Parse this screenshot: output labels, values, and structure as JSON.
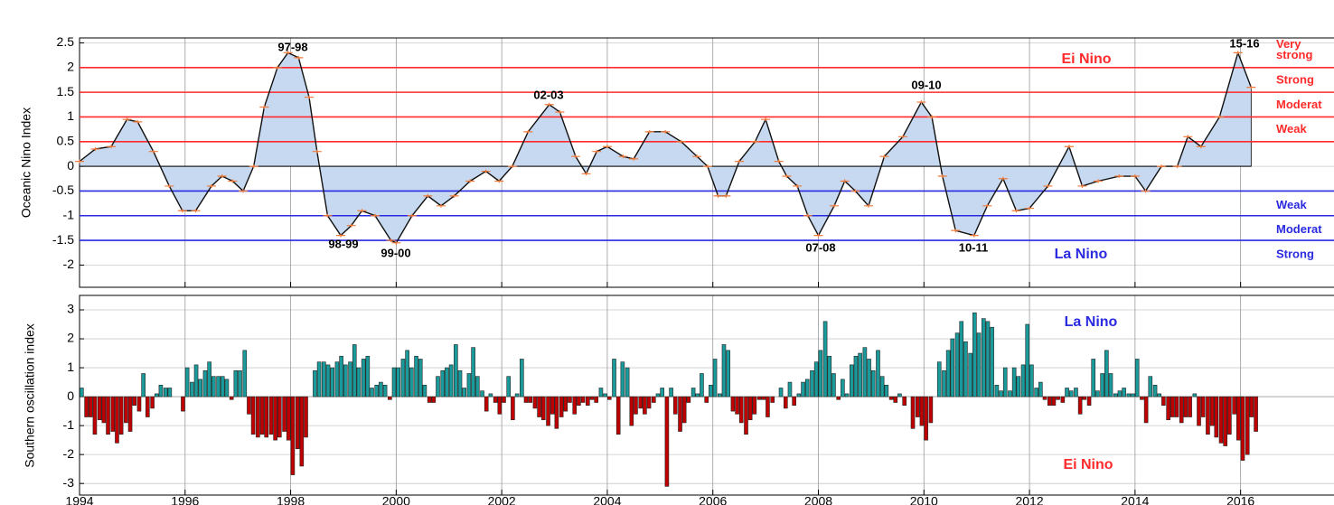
{
  "chart_data": [
    {
      "type": "area",
      "y_label": "Oceanic Nino Index",
      "x": [
        1994.0,
        1994.3,
        1994.6,
        1994.9,
        1995.1,
        1995.4,
        1995.7,
        1995.95,
        1996.2,
        1996.5,
        1996.7,
        1996.9,
        1997.1,
        1997.3,
        1997.5,
        1997.75,
        1997.95,
        1998.15,
        1998.35,
        1998.5,
        1998.7,
        1998.95,
        1999.15,
        1999.35,
        1999.6,
        1999.9,
        2000.0,
        2000.3,
        2000.6,
        2000.85,
        2001.1,
        2001.4,
        2001.7,
        2001.95,
        2002.2,
        2002.5,
        2002.9,
        2003.1,
        2003.4,
        2003.6,
        2003.8,
        2004.0,
        2004.3,
        2004.5,
        2004.8,
        2005.1,
        2005.4,
        2005.7,
        2005.9,
        2006.1,
        2006.25,
        2006.5,
        2006.8,
        2007.0,
        2007.25,
        2007.4,
        2007.6,
        2007.8,
        2008.0,
        2008.3,
        2008.5,
        2008.7,
        2008.95,
        2009.25,
        2009.6,
        2009.95,
        2010.15,
        2010.35,
        2010.6,
        2010.95,
        2011.2,
        2011.5,
        2011.75,
        2012.0,
        2012.35,
        2012.75,
        2013.0,
        2013.3,
        2013.7,
        2014.0,
        2014.2,
        2014.5,
        2014.8,
        2015.0,
        2015.25,
        2015.6,
        2015.95,
        2016.2
      ],
      "values": [
        0.1,
        0.35,
        0.4,
        0.95,
        0.9,
        0.3,
        -0.4,
        -0.9,
        -0.9,
        -0.4,
        -0.2,
        -0.3,
        -0.5,
        0,
        1.2,
        2,
        2.3,
        2.2,
        1.4,
        0.3,
        -1,
        -1.4,
        -1.2,
        -0.9,
        -1,
        -1.5,
        -1.55,
        -1,
        -0.6,
        -0.8,
        -0.6,
        -0.3,
        -0.1,
        -0.3,
        0,
        0.7,
        1.25,
        1.1,
        0.2,
        -0.15,
        0.3,
        0.4,
        0.2,
        0.15,
        0.7,
        0.7,
        0.5,
        0.2,
        0,
        -0.6,
        -0.6,
        0.1,
        0.5,
        0.95,
        0.1,
        -0.2,
        -0.4,
        -1,
        -1.4,
        -0.8,
        -0.3,
        -0.5,
        -0.8,
        0.2,
        0.6,
        1.3,
        1,
        -0.2,
        -1.3,
        -1.4,
        -0.8,
        -0.25,
        -0.9,
        -0.85,
        -0.4,
        0.4,
        -0.4,
        -0.3,
        -0.2,
        -0.2,
        -0.5,
        0,
        0,
        0.6,
        0.4,
        1,
        2.3,
        1.6
      ],
      "fill_color": "#c6d9f1",
      "line_color": "#111111",
      "marker_color": "#f07a3a",
      "xlim": [
        1994,
        2017.77
      ],
      "xticks": [
        1994,
        1996,
        1998,
        2000,
        2002,
        2004,
        2006,
        2008,
        2010,
        2012,
        2014,
        2016
      ],
      "ylim": [
        -2.45,
        2.6
      ],
      "yticks": [
        2.5,
        2,
        1.5,
        1,
        0.5,
        0,
        -0.5,
        -1,
        -1.5,
        -2
      ],
      "grid": true,
      "reference_lines": [
        {
          "value": 2,
          "color": "#ff2a2a",
          "label": [
            "Very",
            "strong"
          ]
        },
        {
          "value": 1.5,
          "color": "#ff2a2a",
          "label": [
            "Strong"
          ]
        },
        {
          "value": 1,
          "color": "#ff2a2a",
          "label": [
            "Moderat"
          ]
        },
        {
          "value": 0.5,
          "color": "#ff2a2a",
          "label": [
            "Weak"
          ]
        },
        {
          "value": -0.5,
          "color": "#2a2ae0",
          "label": [
            "Weak"
          ]
        },
        {
          "value": -1,
          "color": "#2a2ae0",
          "label": [
            "Moderat"
          ]
        },
        {
          "value": -1.5,
          "color": "#2a2ae0",
          "label": [
            "Strong"
          ]
        }
      ],
      "annotations": [
        "97-98",
        "98-99",
        "99-00",
        "02-03",
        "07-08",
        "09-10",
        "10-11",
        "15-16",
        "Ei Nino",
        "La Nino"
      ]
    },
    {
      "type": "bar",
      "y_label": "Southern oscillation index",
      "x": [
        1994.04,
        1994.13,
        1994.21,
        1994.29,
        1994.38,
        1994.46,
        1994.54,
        1994.63,
        1994.71,
        1994.79,
        1994.88,
        1994.96,
        1995.04,
        1995.13,
        1995.21,
        1995.29,
        1995.38,
        1995.46,
        1995.54,
        1995.63,
        1995.71,
        1995.79,
        1995.88,
        1995.96,
        1996.04,
        1996.13,
        1996.21,
        1996.29,
        1996.38,
        1996.46,
        1996.54,
        1996.63,
        1996.71,
        1996.79,
        1996.88,
        1996.96,
        1997.04,
        1997.13,
        1997.21,
        1997.29,
        1997.38,
        1997.46,
        1997.54,
        1997.63,
        1997.71,
        1997.79,
        1997.88,
        1997.96,
        1998.04,
        1998.13,
        1998.21,
        1998.29,
        1998.38,
        1998.46,
        1998.54,
        1998.63,
        1998.71,
        1998.79,
        1998.88,
        1998.96,
        1999.04,
        1999.13,
        1999.21,
        1999.29,
        1999.38,
        1999.46,
        1999.54,
        1999.63,
        1999.71,
        1999.79,
        1999.88,
        1999.96,
        2000.04,
        2000.13,
        2000.21,
        2000.29,
        2000.38,
        2000.46,
        2000.54,
        2000.63,
        2000.71,
        2000.79,
        2000.88,
        2000.96,
        2001.04,
        2001.13,
        2001.21,
        2001.29,
        2001.38,
        2001.46,
        2001.54,
        2001.63,
        2001.71,
        2001.79,
        2001.88,
        2001.96,
        2002.04,
        2002.13,
        2002.21,
        2002.29,
        2002.38,
        2002.46,
        2002.54,
        2002.63,
        2002.71,
        2002.79,
        2002.88,
        2002.96,
        2003.04,
        2003.13,
        2003.21,
        2003.29,
        2003.38,
        2003.46,
        2003.54,
        2003.63,
        2003.71,
        2003.79,
        2003.88,
        2003.96,
        2004.04,
        2004.13,
        2004.21,
        2004.29,
        2004.38,
        2004.46,
        2004.54,
        2004.63,
        2004.71,
        2004.79,
        2004.88,
        2004.96,
        2005.04,
        2005.13,
        2005.21,
        2005.29,
        2005.38,
        2005.46,
        2005.54,
        2005.63,
        2005.71,
        2005.79,
        2005.88,
        2005.96,
        2006.04,
        2006.13,
        2006.21,
        2006.29,
        2006.38,
        2006.46,
        2006.54,
        2006.63,
        2006.71,
        2006.79,
        2006.88,
        2006.96,
        2007.04,
        2007.13,
        2007.21,
        2007.29,
        2007.38,
        2007.46,
        2007.54,
        2007.63,
        2007.71,
        2007.79,
        2007.88,
        2007.96,
        2008.04,
        2008.13,
        2008.21,
        2008.29,
        2008.38,
        2008.46,
        2008.54,
        2008.63,
        2008.71,
        2008.79,
        2008.88,
        2008.96,
        2009.04,
        2009.13,
        2009.21,
        2009.29,
        2009.38,
        2009.46,
        2009.54,
        2009.63,
        2009.71,
        2009.79,
        2009.88,
        2009.96,
        2010.04,
        2010.13,
        2010.21,
        2010.29,
        2010.38,
        2010.46,
        2010.54,
        2010.63,
        2010.71,
        2010.79,
        2010.88,
        2010.96,
        2011.04,
        2011.13,
        2011.21,
        2011.29,
        2011.38,
        2011.46,
        2011.54,
        2011.63,
        2011.71,
        2011.79,
        2011.88,
        2011.96,
        2012.04,
        2012.13,
        2012.21,
        2012.29,
        2012.38,
        2012.46,
        2012.54,
        2012.63,
        2012.71,
        2012.79,
        2012.88,
        2012.96,
        2013.04,
        2013.13,
        2013.21,
        2013.29,
        2013.38,
        2013.46,
        2013.54,
        2013.63,
        2013.71,
        2013.79,
        2013.88,
        2013.96,
        2014.04,
        2014.13,
        2014.21,
        2014.29,
        2014.38,
        2014.46,
        2014.54,
        2014.63,
        2014.71,
        2014.79,
        2014.88,
        2014.96,
        2015.04,
        2015.13,
        2015.21,
        2015.29,
        2015.38,
        2015.46,
        2015.54,
        2015.63,
        2015.71,
        2015.79,
        2015.88,
        2015.96,
        2016.04,
        2016.13,
        2016.21,
        2016.29,
        2016.38,
        2016.46,
        2016.54,
        2016.63,
        2016.71,
        2016.79,
        2016.88,
        2016.96
      ],
      "values": [
        0.3,
        -0.7,
        -0.7,
        -1.3,
        -0.8,
        -0.9,
        -1.3,
        -1.2,
        -1.6,
        -1.3,
        -0.9,
        -1.2,
        -0.3,
        -0.5,
        0.8,
        -0.7,
        -0.4,
        0.1,
        0.4,
        0.3,
        0.3,
        0,
        0,
        -0.5,
        1,
        0.5,
        1.1,
        0.6,
        0.9,
        1.2,
        0.7,
        0.7,
        0.7,
        0.6,
        -0.1,
        0.9,
        0.9,
        1.6,
        -0.6,
        -1.3,
        -1.4,
        -1.3,
        -1.4,
        -1.3,
        -1.5,
        -1.4,
        -1.2,
        -1.5,
        -2.7,
        -1.8,
        -2.4,
        -1.4,
        0,
        0.9,
        1.2,
        1.2,
        1.1,
        1,
        1.2,
        1.4,
        1.1,
        1.2,
        1.8,
        1,
        1.3,
        1.4,
        0.3,
        0.4,
        0.5,
        0.4,
        -0.1,
        1,
        1,
        1.3,
        1.6,
        1,
        1.4,
        1.3,
        0.4,
        -0.2,
        -0.2,
        0.7,
        0.9,
        1,
        1.1,
        1.8,
        0.9,
        0.3,
        0.8,
        1.7,
        0.7,
        0.2,
        -0.5,
        0.1,
        -0.2,
        -0.6,
        -0.2,
        0.7,
        -0.8,
        0.1,
        1.3,
        -0.2,
        -0.2,
        -0.4,
        -0.7,
        -0.8,
        -1,
        -0.6,
        -1.1,
        -0.7,
        -0.5,
        -0.2,
        -0.6,
        -0.3,
        -0.2,
        -0.3,
        -0.1,
        -0.2,
        0.3,
        0.1,
        -0.1,
        1.3,
        -1.3,
        1.2,
        1,
        -1,
        -0.6,
        -0.4,
        -0.6,
        -0.4,
        -0.2,
        0.1,
        0.3,
        -3.1,
        0.3,
        -0.6,
        -1.2,
        -0.9,
        -0.2,
        0.3,
        0.1,
        0.8,
        -0.2,
        0.4,
        1.3,
        0.1,
        1.8,
        1.6,
        -0.5,
        -0.6,
        -0.9,
        -1.3,
        -0.8,
        -0.6,
        -0.1,
        -0.1,
        -0.7,
        -0.2,
        0,
        0.3,
        -0.4,
        0.5,
        -0.3,
        0.1,
        0.5,
        0.6,
        0.9,
        1.2,
        1.6,
        2.6,
        1.4,
        0.8,
        -0.1,
        0.6,
        0.1,
        1.1,
        1.4,
        1.5,
        1.7,
        1.3,
        0.9,
        1.6,
        0.7,
        0.4,
        -0.1,
        -0.2,
        0.1,
        -0.3,
        0,
        -1.1,
        -0.7,
        -1,
        -1.5,
        -0.9,
        0,
        1.2,
        0.9,
        1.6,
        2,
        2.2,
        2.6,
        1.9,
        1.5,
        2.9,
        2.2,
        2.7,
        2.6,
        2.4,
        0.4,
        0.2,
        1,
        0.2,
        1,
        0.7,
        1.1,
        2.5,
        1.1,
        0.3,
        0.5,
        -0.1,
        -0.3,
        -0.3,
        -0.1,
        -0.2,
        0.3,
        0.2,
        0.3,
        -0.6,
        -0.1,
        -0.3,
        1.3,
        0.2,
        0.8,
        1.6,
        0.8,
        0.1,
        0.2,
        0.3,
        0.1,
        0.1,
        1.3,
        -0.1,
        -0.9,
        0.7,
        0.4,
        0.1,
        -0.3,
        -0.8,
        -0.7,
        -0.7,
        -0.9,
        -0.7,
        -0.7,
        0.1,
        -1,
        -0.7,
        -1.3,
        -1,
        -1.4,
        -1.6,
        -1.7,
        -1.3,
        -0.6,
        -1.5,
        -2.2,
        -2,
        -0.7,
        -1.2,
        0,
        0,
        0,
        0,
        0,
        0,
        0,
        0
      ],
      "positive_color": "#1a9a9a",
      "negative_color": "#c00000",
      "xlim": [
        1994,
        2017.77
      ],
      "xticks": [
        1994,
        1996,
        1998,
        2000,
        2002,
        2004,
        2006,
        2008,
        2010,
        2012,
        2014,
        2016
      ],
      "ylim": [
        -3.4,
        3.5
      ],
      "yticks": [
        3,
        2,
        1,
        0,
        -1,
        -2,
        -3
      ],
      "grid": true,
      "annotations": [
        "La Nino",
        "Ei Nino"
      ]
    }
  ]
}
